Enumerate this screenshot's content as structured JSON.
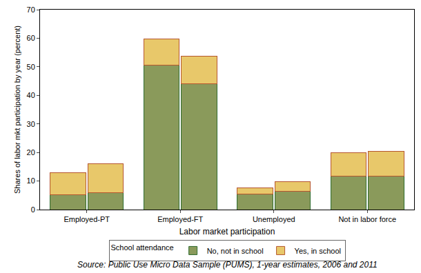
{
  "chart_data": {
    "type": "bar",
    "stacked": true,
    "x_label": "Labor market participation",
    "y_label": "Shares of labor mkt participation by year (percent)",
    "categories": [
      "Employed-PT",
      "Employed-FT",
      "Unemployed",
      "Not in labor force"
    ],
    "series": [
      {
        "name": "No, not in school",
        "color": "#8a9a5b",
        "values": [
          [
            5.3,
            5.8
          ],
          [
            50.5,
            44.1
          ],
          [
            5.4,
            6.5
          ],
          [
            11.8,
            11.6
          ]
        ]
      },
      {
        "name": "Yes, in school",
        "color": "#e8c86a",
        "values": [
          [
            7.5,
            10.3
          ],
          [
            9.3,
            9.5
          ],
          [
            2.1,
            3.3
          ],
          [
            8.2,
            8.8
          ]
        ]
      }
    ],
    "ylim": [
      0,
      70
    ],
    "yticks": [
      0,
      10,
      20,
      30,
      40,
      50,
      60,
      70
    ],
    "grid": false,
    "legend": "bottom",
    "legend_title": "School attendance",
    "source": "Source: Public Use Micro Data Sample (PUMS), 1-year estimates, 2006 and 2011"
  }
}
